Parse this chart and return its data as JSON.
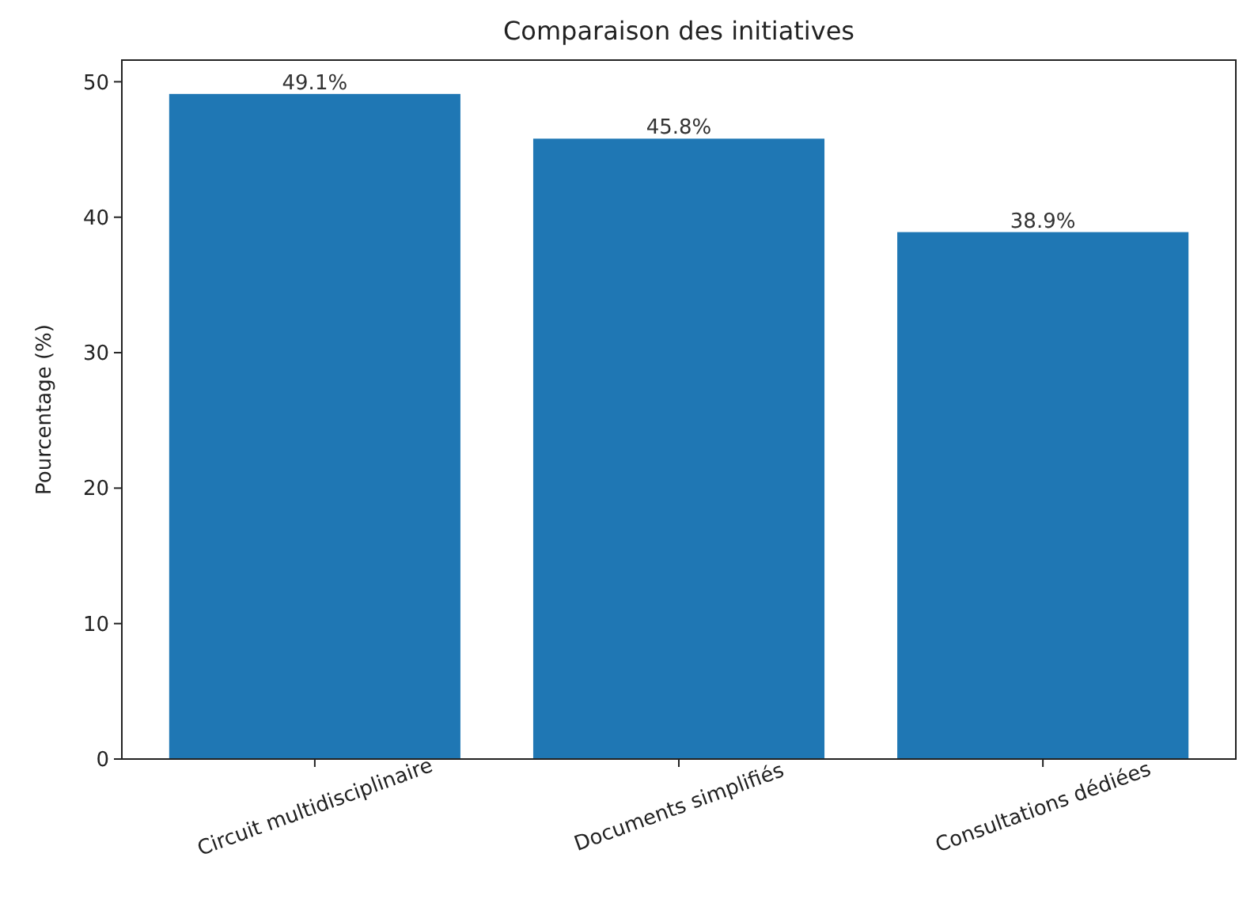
{
  "chart_data": {
    "type": "bar",
    "title": "Comparaison des initiatives",
    "ylabel": "Pourcentage (%)",
    "categories": [
      "Circuit multidisciplinaire",
      "Documents simplifiés",
      "Consultations dédiées"
    ],
    "values": [
      49.1,
      45.8,
      38.9
    ],
    "color": "#1f77b4",
    "value_labels": [
      "49.1%",
      "45.8%",
      "38.9%"
    ],
    "ylim": [
      0,
      51.6
    ],
    "yticks": [
      0,
      10,
      20,
      30,
      40,
      50
    ],
    "grid": false
  }
}
